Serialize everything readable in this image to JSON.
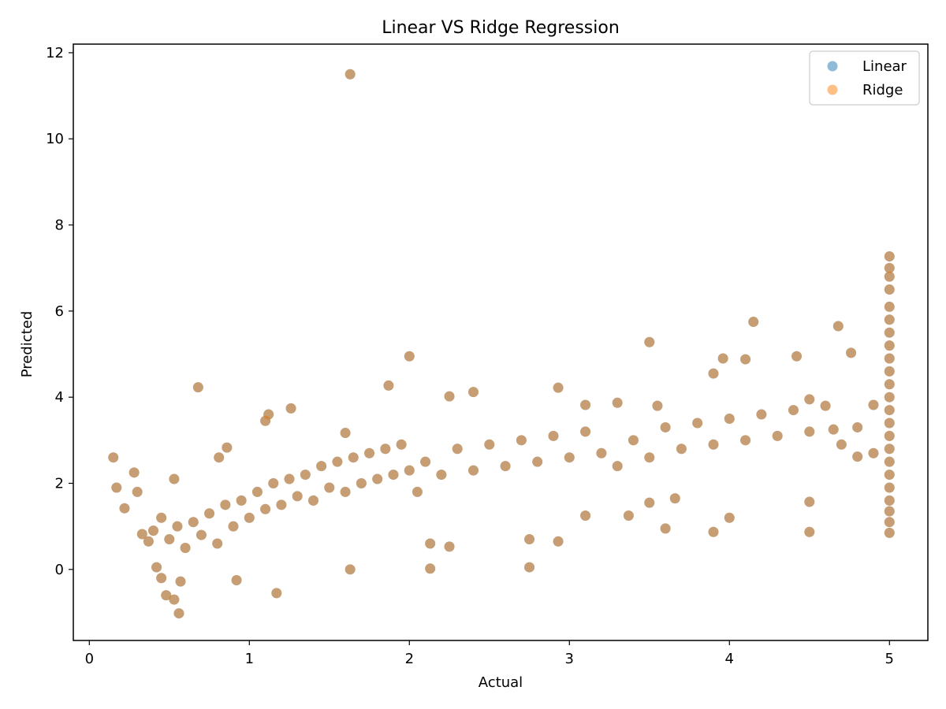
{
  "chart_data": {
    "type": "scatter",
    "title": "Linear VS Ridge Regression",
    "xlabel": "Actual",
    "ylabel": "Predicted",
    "xlim": [
      -0.1,
      5.24
    ],
    "ylim": [
      -1.65,
      12.2
    ],
    "xticks": [
      0,
      1,
      2,
      3,
      4,
      5
    ],
    "yticks": [
      0,
      2,
      4,
      6,
      8,
      10,
      12
    ],
    "grid": false,
    "legend_position": "top-right",
    "series": [
      {
        "name": "Linear",
        "color": "#1f77b4",
        "alpha": 0.5,
        "points": [
          [
            1.63,
            11.5
          ],
          [
            0.68,
            4.23
          ],
          [
            2.0,
            4.95
          ],
          [
            1.87,
            4.27
          ],
          [
            2.4,
            4.12
          ],
          [
            2.93,
            4.22
          ],
          [
            2.25,
            4.02
          ],
          [
            0.15,
            2.6
          ],
          [
            0.17,
            1.9
          ],
          [
            0.22,
            1.42
          ],
          [
            0.28,
            2.25
          ],
          [
            0.3,
            1.8
          ],
          [
            0.33,
            0.82
          ],
          [
            0.37,
            0.65
          ],
          [
            0.42,
            0.05
          ],
          [
            0.45,
            -0.2
          ],
          [
            0.48,
            -0.6
          ],
          [
            0.53,
            -0.7
          ],
          [
            0.56,
            -1.02
          ],
          [
            0.57,
            -0.28
          ],
          [
            0.53,
            2.1
          ],
          [
            0.86,
            2.83
          ],
          [
            0.81,
            2.6
          ],
          [
            1.12,
            3.6
          ],
          [
            1.26,
            3.74
          ],
          [
            1.1,
            3.45
          ],
          [
            1.17,
            -0.55
          ],
          [
            0.92,
            -0.25
          ],
          [
            1.6,
            3.17
          ],
          [
            1.63,
            0.0
          ],
          [
            2.13,
            0.02
          ],
          [
            2.75,
            0.05
          ],
          [
            2.13,
            0.6
          ],
          [
            2.25,
            0.53
          ],
          [
            2.93,
            0.65
          ],
          [
            2.75,
            0.7
          ],
          [
            3.1,
            1.25
          ],
          [
            3.37,
            1.25
          ],
          [
            3.3,
            3.87
          ],
          [
            3.1,
            3.82
          ],
          [
            3.5,
            5.28
          ],
          [
            3.55,
            3.8
          ],
          [
            3.6,
            0.95
          ],
          [
            3.66,
            1.65
          ],
          [
            3.9,
            4.55
          ],
          [
            3.96,
            4.9
          ],
          [
            4.1,
            4.88
          ],
          [
            4.15,
            5.75
          ],
          [
            4.42,
            4.95
          ],
          [
            4.68,
            5.65
          ],
          [
            4.76,
            5.03
          ],
          [
            4.5,
            1.57
          ],
          [
            4.5,
            0.87
          ],
          [
            3.9,
            0.87
          ],
          [
            4.0,
            1.2
          ],
          [
            3.5,
            1.55
          ],
          [
            4.5,
            3.95
          ],
          [
            4.65,
            3.25
          ],
          [
            4.8,
            2.62
          ],
          [
            4.9,
            3.82
          ],
          [
            5.0,
            7.27
          ],
          [
            5.0,
            7.0
          ],
          [
            5.0,
            6.8
          ],
          [
            5.0,
            6.5
          ],
          [
            5.0,
            6.1
          ],
          [
            5.0,
            5.8
          ],
          [
            5.0,
            5.5
          ],
          [
            5.0,
            5.2
          ],
          [
            5.0,
            4.9
          ],
          [
            5.0,
            4.6
          ],
          [
            5.0,
            4.3
          ],
          [
            5.0,
            4.0
          ],
          [
            5.0,
            3.7
          ],
          [
            5.0,
            3.4
          ],
          [
            5.0,
            3.1
          ],
          [
            5.0,
            2.8
          ],
          [
            5.0,
            2.5
          ],
          [
            5.0,
            2.2
          ],
          [
            5.0,
            1.9
          ],
          [
            5.0,
            1.6
          ],
          [
            5.0,
            1.35
          ],
          [
            5.0,
            1.1
          ],
          [
            5.0,
            0.85
          ],
          [
            0.4,
            0.9
          ],
          [
            0.45,
            1.2
          ],
          [
            0.5,
            0.7
          ],
          [
            0.55,
            1.0
          ],
          [
            0.6,
            0.5
          ],
          [
            0.65,
            1.1
          ],
          [
            0.7,
            0.8
          ],
          [
            0.75,
            1.3
          ],
          [
            0.8,
            0.6
          ],
          [
            0.85,
            1.5
          ],
          [
            0.9,
            1.0
          ],
          [
            0.95,
            1.6
          ],
          [
            1.0,
            1.2
          ],
          [
            1.05,
            1.8
          ],
          [
            1.1,
            1.4
          ],
          [
            1.15,
            2.0
          ],
          [
            1.2,
            1.5
          ],
          [
            1.25,
            2.1
          ],
          [
            1.3,
            1.7
          ],
          [
            1.35,
            2.2
          ],
          [
            1.4,
            1.6
          ],
          [
            1.45,
            2.4
          ],
          [
            1.5,
            1.9
          ],
          [
            1.55,
            2.5
          ],
          [
            1.6,
            1.8
          ],
          [
            1.65,
            2.6
          ],
          [
            1.7,
            2.0
          ],
          [
            1.75,
            2.7
          ],
          [
            1.8,
            2.1
          ],
          [
            1.85,
            2.8
          ],
          [
            1.9,
            2.2
          ],
          [
            1.95,
            2.9
          ],
          [
            2.0,
            2.3
          ],
          [
            2.05,
            1.8
          ],
          [
            2.1,
            2.5
          ],
          [
            2.2,
            2.2
          ],
          [
            2.3,
            2.8
          ],
          [
            2.4,
            2.3
          ],
          [
            2.5,
            2.9
          ],
          [
            2.6,
            2.4
          ],
          [
            2.7,
            3.0
          ],
          [
            2.8,
            2.5
          ],
          [
            2.9,
            3.1
          ],
          [
            3.0,
            2.6
          ],
          [
            3.1,
            3.2
          ],
          [
            3.2,
            2.7
          ],
          [
            3.3,
            2.4
          ],
          [
            3.4,
            3.0
          ],
          [
            3.5,
            2.6
          ],
          [
            3.6,
            3.3
          ],
          [
            3.7,
            2.8
          ],
          [
            3.8,
            3.4
          ],
          [
            3.9,
            2.9
          ],
          [
            4.0,
            3.5
          ],
          [
            4.1,
            3.0
          ],
          [
            4.2,
            3.6
          ],
          [
            4.3,
            3.1
          ],
          [
            4.4,
            3.7
          ],
          [
            4.5,
            3.2
          ],
          [
            4.6,
            3.8
          ],
          [
            4.7,
            2.9
          ],
          [
            4.8,
            3.3
          ],
          [
            4.9,
            2.7
          ]
        ]
      },
      {
        "name": "Ridge",
        "color": "#ff7f0e",
        "alpha": 0.5,
        "points": [
          [
            1.63,
            11.5
          ],
          [
            0.68,
            4.23
          ],
          [
            2.0,
            4.95
          ],
          [
            1.87,
            4.27
          ],
          [
            2.4,
            4.12
          ],
          [
            2.93,
            4.22
          ],
          [
            2.25,
            4.02
          ],
          [
            0.15,
            2.6
          ],
          [
            0.17,
            1.9
          ],
          [
            0.22,
            1.42
          ],
          [
            0.28,
            2.25
          ],
          [
            0.3,
            1.8
          ],
          [
            0.33,
            0.82
          ],
          [
            0.37,
            0.65
          ],
          [
            0.42,
            0.05
          ],
          [
            0.45,
            -0.2
          ],
          [
            0.48,
            -0.6
          ],
          [
            0.53,
            -0.7
          ],
          [
            0.56,
            -1.02
          ],
          [
            0.57,
            -0.28
          ],
          [
            0.53,
            2.1
          ],
          [
            0.86,
            2.83
          ],
          [
            0.81,
            2.6
          ],
          [
            1.12,
            3.6
          ],
          [
            1.26,
            3.74
          ],
          [
            1.1,
            3.45
          ],
          [
            1.17,
            -0.55
          ],
          [
            0.92,
            -0.25
          ],
          [
            1.6,
            3.17
          ],
          [
            1.63,
            0.0
          ],
          [
            2.13,
            0.02
          ],
          [
            2.75,
            0.05
          ],
          [
            2.13,
            0.6
          ],
          [
            2.25,
            0.53
          ],
          [
            2.93,
            0.65
          ],
          [
            2.75,
            0.7
          ],
          [
            3.1,
            1.25
          ],
          [
            3.37,
            1.25
          ],
          [
            3.3,
            3.87
          ],
          [
            3.1,
            3.82
          ],
          [
            3.5,
            5.28
          ],
          [
            3.55,
            3.8
          ],
          [
            3.6,
            0.95
          ],
          [
            3.66,
            1.65
          ],
          [
            3.9,
            4.55
          ],
          [
            3.96,
            4.9
          ],
          [
            4.1,
            4.88
          ],
          [
            4.15,
            5.75
          ],
          [
            4.42,
            4.95
          ],
          [
            4.68,
            5.65
          ],
          [
            4.76,
            5.03
          ],
          [
            4.5,
            1.57
          ],
          [
            4.5,
            0.87
          ],
          [
            3.9,
            0.87
          ],
          [
            4.0,
            1.2
          ],
          [
            3.5,
            1.55
          ],
          [
            4.5,
            3.95
          ],
          [
            4.65,
            3.25
          ],
          [
            4.8,
            2.62
          ],
          [
            4.9,
            3.82
          ],
          [
            5.0,
            7.27
          ],
          [
            5.0,
            7.0
          ],
          [
            5.0,
            6.8
          ],
          [
            5.0,
            6.5
          ],
          [
            5.0,
            6.1
          ],
          [
            5.0,
            5.8
          ],
          [
            5.0,
            5.5
          ],
          [
            5.0,
            5.2
          ],
          [
            5.0,
            4.9
          ],
          [
            5.0,
            4.6
          ],
          [
            5.0,
            4.3
          ],
          [
            5.0,
            4.0
          ],
          [
            5.0,
            3.7
          ],
          [
            5.0,
            3.4
          ],
          [
            5.0,
            3.1
          ],
          [
            5.0,
            2.8
          ],
          [
            5.0,
            2.5
          ],
          [
            5.0,
            2.2
          ],
          [
            5.0,
            1.9
          ],
          [
            5.0,
            1.6
          ],
          [
            5.0,
            1.35
          ],
          [
            5.0,
            1.1
          ],
          [
            5.0,
            0.85
          ],
          [
            0.4,
            0.9
          ],
          [
            0.45,
            1.2
          ],
          [
            0.5,
            0.7
          ],
          [
            0.55,
            1.0
          ],
          [
            0.6,
            0.5
          ],
          [
            0.65,
            1.1
          ],
          [
            0.7,
            0.8
          ],
          [
            0.75,
            1.3
          ],
          [
            0.8,
            0.6
          ],
          [
            0.85,
            1.5
          ],
          [
            0.9,
            1.0
          ],
          [
            0.95,
            1.6
          ],
          [
            1.0,
            1.2
          ],
          [
            1.05,
            1.8
          ],
          [
            1.1,
            1.4
          ],
          [
            1.15,
            2.0
          ],
          [
            1.2,
            1.5
          ],
          [
            1.25,
            2.1
          ],
          [
            1.3,
            1.7
          ],
          [
            1.35,
            2.2
          ],
          [
            1.4,
            1.6
          ],
          [
            1.45,
            2.4
          ],
          [
            1.5,
            1.9
          ],
          [
            1.55,
            2.5
          ],
          [
            1.6,
            1.8
          ],
          [
            1.65,
            2.6
          ],
          [
            1.7,
            2.0
          ],
          [
            1.75,
            2.7
          ],
          [
            1.8,
            2.1
          ],
          [
            1.85,
            2.8
          ],
          [
            1.9,
            2.2
          ],
          [
            1.95,
            2.9
          ],
          [
            2.0,
            2.3
          ],
          [
            2.05,
            1.8
          ],
          [
            2.1,
            2.5
          ],
          [
            2.2,
            2.2
          ],
          [
            2.3,
            2.8
          ],
          [
            2.4,
            2.3
          ],
          [
            2.5,
            2.9
          ],
          [
            2.6,
            2.4
          ],
          [
            2.7,
            3.0
          ],
          [
            2.8,
            2.5
          ],
          [
            2.9,
            3.1
          ],
          [
            3.0,
            2.6
          ],
          [
            3.1,
            3.2
          ],
          [
            3.2,
            2.7
          ],
          [
            3.3,
            2.4
          ],
          [
            3.4,
            3.0
          ],
          [
            3.5,
            2.6
          ],
          [
            3.6,
            3.3
          ],
          [
            3.7,
            2.8
          ],
          [
            3.8,
            3.4
          ],
          [
            3.9,
            2.9
          ],
          [
            4.0,
            3.5
          ],
          [
            4.1,
            3.0
          ],
          [
            4.2,
            3.6
          ],
          [
            4.3,
            3.1
          ],
          [
            4.4,
            3.7
          ],
          [
            4.5,
            3.2
          ],
          [
            4.6,
            3.8
          ],
          [
            4.7,
            2.9
          ],
          [
            4.8,
            3.3
          ],
          [
            4.9,
            2.7
          ]
        ]
      }
    ]
  }
}
